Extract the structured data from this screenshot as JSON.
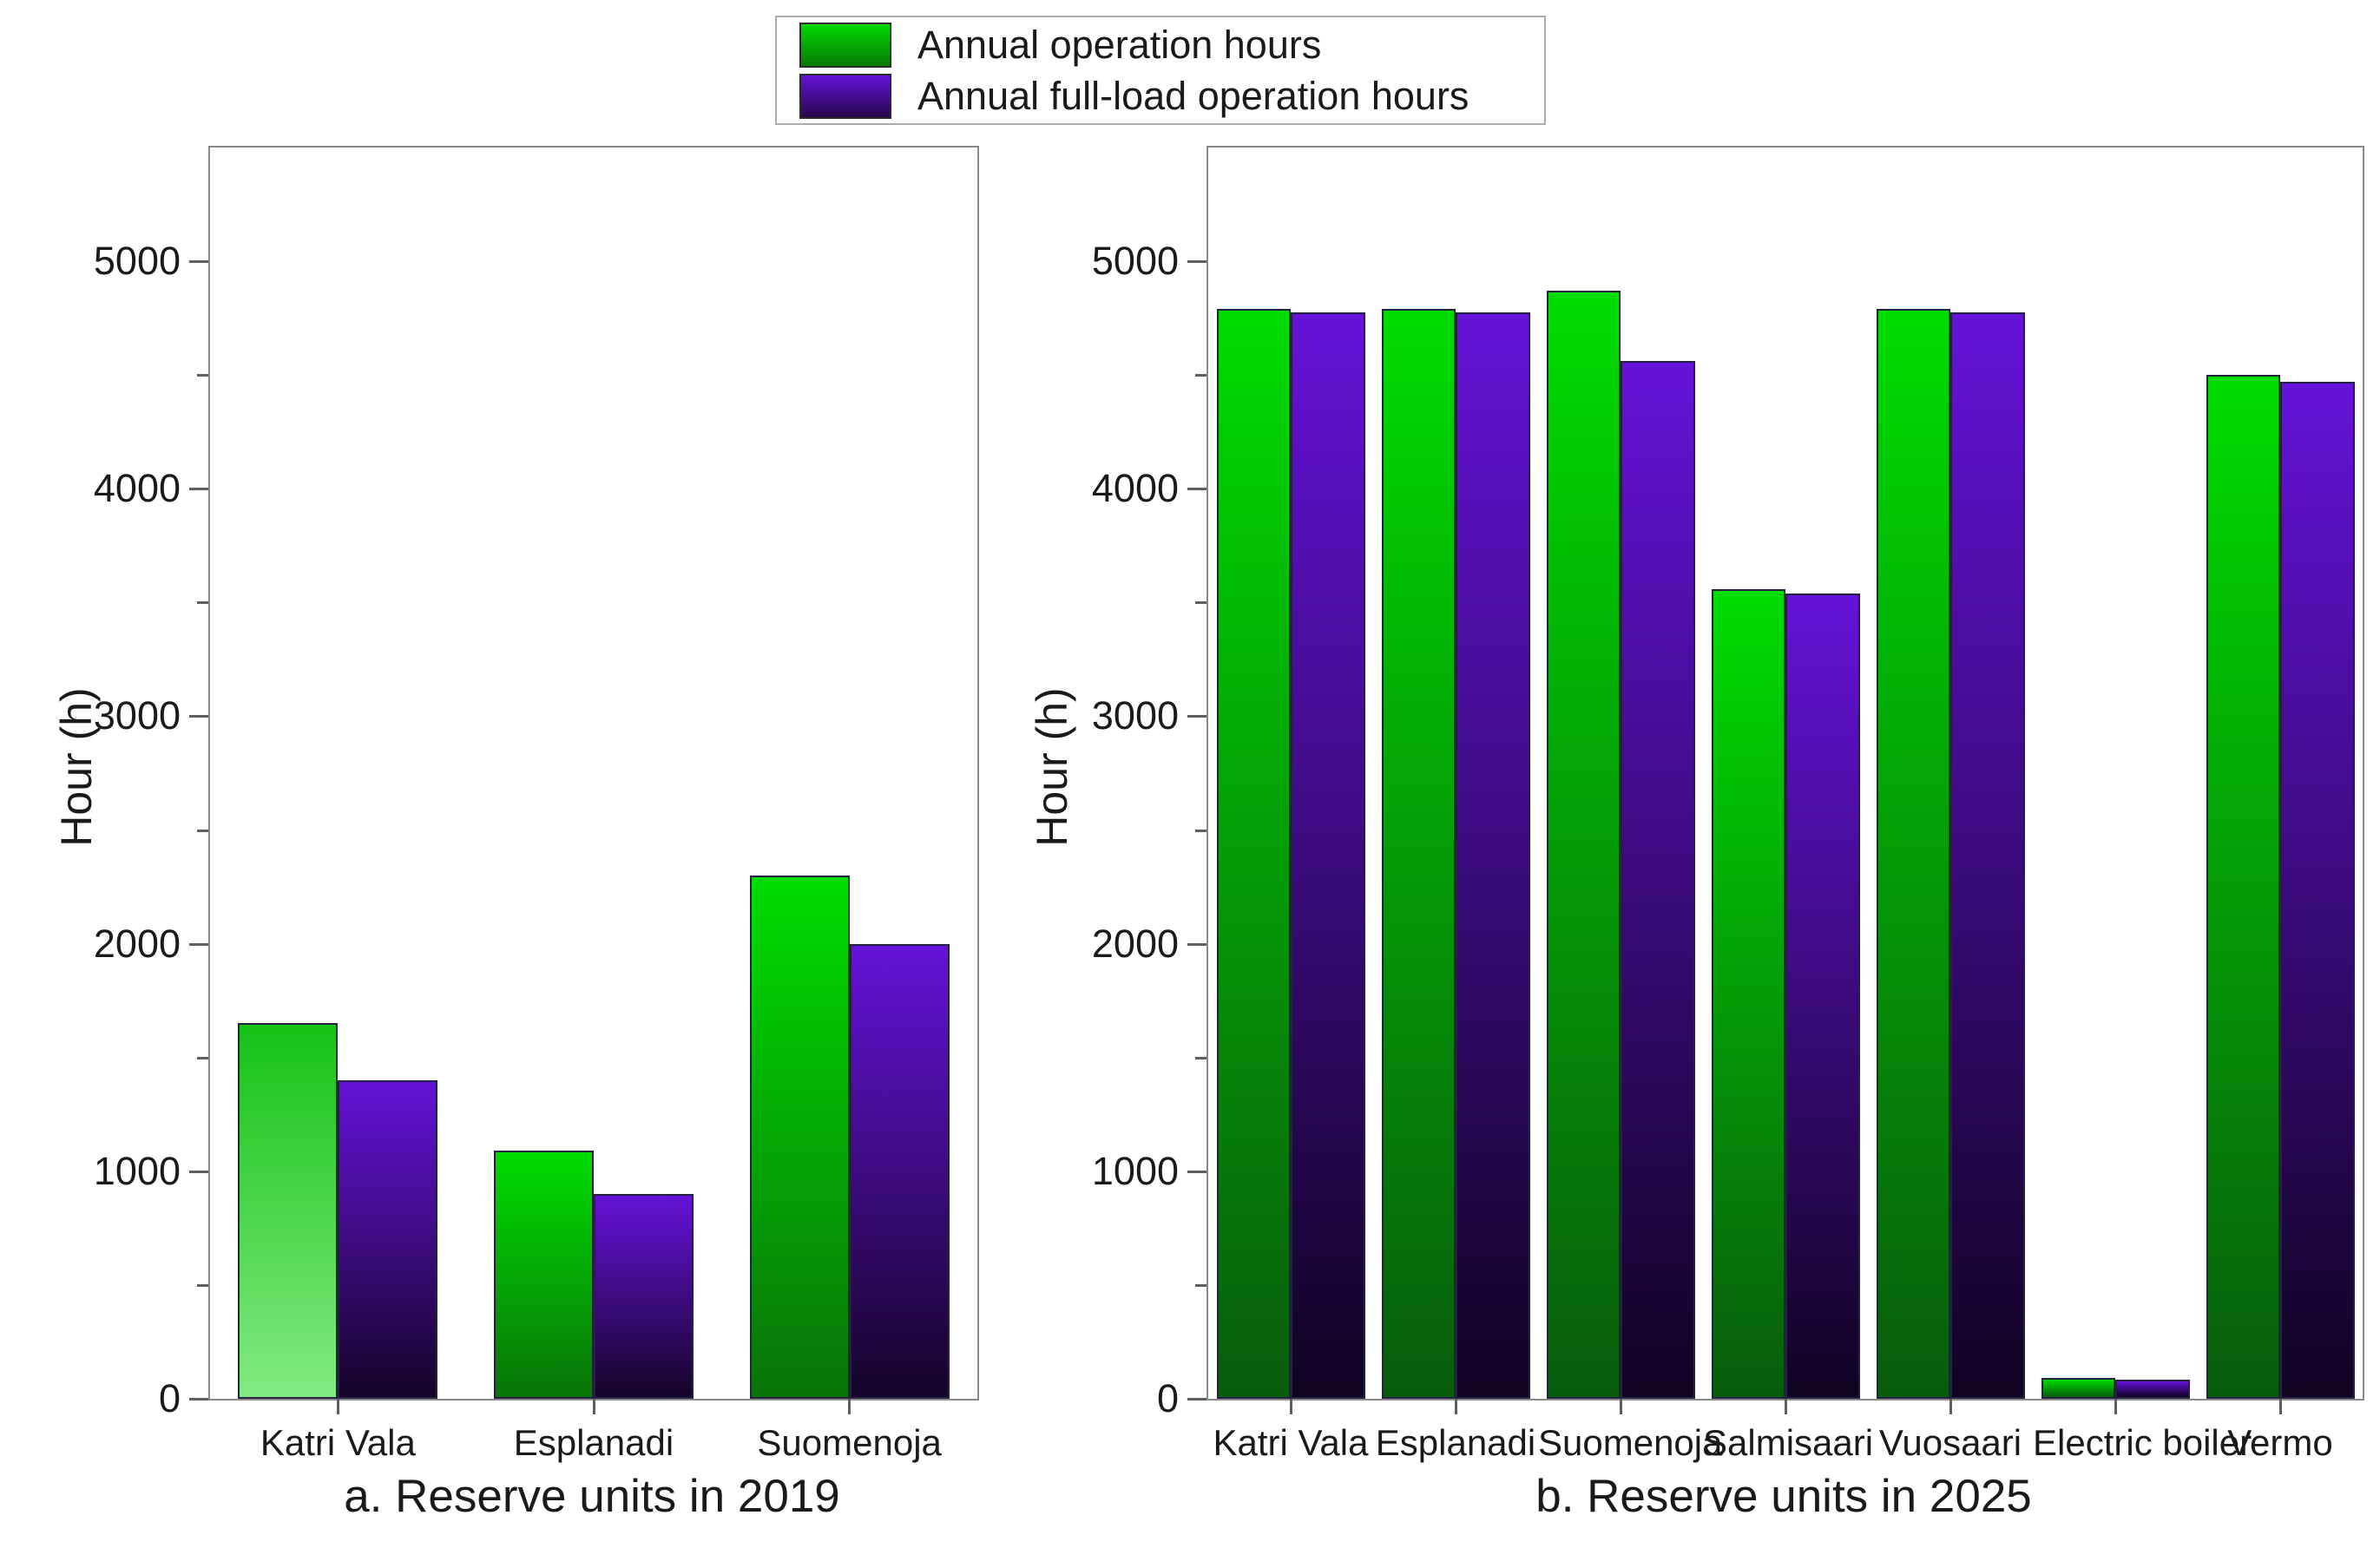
{
  "figure": {
    "background": "#ffffff"
  },
  "legend": {
    "items": [
      {
        "label": "Annual operation hours",
        "swatch_top": "#00d900",
        "swatch_bottom": "#077a07"
      },
      {
        "label": "Annual full-load operation hours",
        "swatch_top": "#6512d8",
        "swatch_bottom": "#26074e"
      }
    ]
  },
  "axes": {
    "ylabel": "Hour (h)",
    "major_ticks": [
      0,
      1000,
      2000,
      3000,
      4000,
      5000
    ],
    "minor_ticks": [
      500,
      1500,
      2500,
      3500,
      4500
    ],
    "grid": "off",
    "legend_position": "top-center"
  },
  "chart_data": [
    {
      "type": "bar",
      "title": "a. Reserve units in 2019",
      "ylabel": "Hour (h)",
      "ylim": [
        0,
        5500
      ],
      "categories": [
        "Katri Vala",
        "Esplanadi",
        "Suomenoja"
      ],
      "series": [
        {
          "name": "Annual operation hours",
          "values": [
            1650,
            1090,
            2300
          ],
          "gradient_top": "#00dc00",
          "gradient_bottom": "#087408",
          "overrides": {
            "0": {
              "top": "#16c216",
              "bottom": "#82ea82"
            }
          }
        },
        {
          "name": "Annual full-load operation hours",
          "values": [
            1400,
            900,
            2000
          ],
          "gradient_top": "#6512d8",
          "gradient_bottom": "#150429"
        }
      ]
    },
    {
      "type": "bar",
      "title": "b. Reserve units in 2025",
      "ylabel": "Hour (h)",
      "ylim": [
        0,
        5500
      ],
      "categories": [
        "Katri Vala",
        "Esplanadi",
        "Suomenoja",
        "Salmisaari",
        "Vuosaari",
        "Electric boiler",
        "Vermo"
      ],
      "series": [
        {
          "name": "Annual operation hours",
          "values": [
            4790,
            4790,
            4870,
            3560,
            4790,
            90,
            4500
          ],
          "gradient_top": "#00dc00",
          "gradient_bottom": "#085c0c"
        },
        {
          "name": "Annual full-load operation hours",
          "values": [
            4775,
            4775,
            4560,
            3540,
            4775,
            85,
            4470
          ],
          "gradient_top": "#6512d8",
          "gradient_bottom": "#100322"
        }
      ]
    }
  ]
}
